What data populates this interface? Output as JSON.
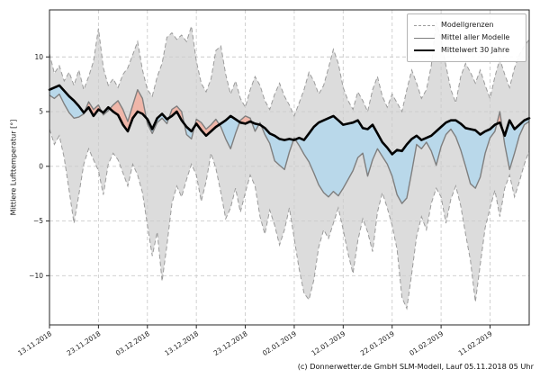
{
  "figure": {
    "caption": "(c) Donnerwetter.de GmbH SLM-Modell, Lauf 05.11.2018 05 Uhr"
  },
  "chart_data": {
    "type": "line",
    "title": "",
    "xlabel": "",
    "ylabel": "Mittlere Lufttemperatur [°]",
    "ylim": [
      -14.5,
      14.3
    ],
    "grid": true,
    "legend_position": "top-right-inside",
    "legend": [
      "Modellgrenzen",
      "Mittel aller Modelle",
      "Mittelwert 30 Jahre"
    ],
    "x_tick_labels": [
      "13.11.2018",
      "23.11.2018",
      "03.12.2018",
      "13.12.2018",
      "23.12.2018",
      "02.01.2019",
      "12.01.2019",
      "22.01.2019",
      "01.02.2019",
      "11.02.2019"
    ],
    "x_tick_days": [
      0,
      10,
      20,
      30,
      40,
      50,
      60,
      70,
      80,
      90
    ],
    "x_range_days": [
      0,
      98
    ],
    "x_unit": "Tage ab 13.11.2018",
    "y_ticks": [
      10,
      5,
      0,
      -5,
      -10
    ],
    "y_tick_labels": [
      "10",
      "5",
      "0",
      "−5",
      "−10"
    ],
    "colors": {
      "band_fill": "#dcdcdc",
      "band_border": "#9b9b9b",
      "above_fill": "#efb6a9",
      "below_fill": "#b9d8ea",
      "model_mean_line": "#7f7f7f",
      "climate_line": "#000000",
      "grid_line": "#cccccc",
      "axis": "#262626"
    },
    "series": [
      {
        "name": "Modellgrenzen (obere Grenze)",
        "role": "upper_bound",
        "style": "dashed",
        "values": [
          10.3,
          8.5,
          9.2,
          7.8,
          8.6,
          7.4,
          8.8,
          7.0,
          8.2,
          9.6,
          12.6,
          9.0,
          7.4,
          8.0,
          7.2,
          8.4,
          9.0,
          10.2,
          11.4,
          8.8,
          7.0,
          6.4,
          8.2,
          9.4,
          11.8,
          12.2,
          11.6,
          12.0,
          11.4,
          12.8,
          9.6,
          7.6,
          6.8,
          8.0,
          10.6,
          11.0,
          8.4,
          6.6,
          7.8,
          6.2,
          5.4,
          7.0,
          8.2,
          7.4,
          6.0,
          5.2,
          6.6,
          7.6,
          6.4,
          5.6,
          4.6,
          5.8,
          7.0,
          8.6,
          7.8,
          6.6,
          7.4,
          9.0,
          10.7,
          9.4,
          7.2,
          6.0,
          5.2,
          6.8,
          6.0,
          5.0,
          7.0,
          8.2,
          6.4,
          5.4,
          6.6,
          5.8,
          5.0,
          7.0,
          8.8,
          7.6,
          6.2,
          7.0,
          9.2,
          13.2,
          11.6,
          9.2,
          7.0,
          5.8,
          8.2,
          9.4,
          8.6,
          7.6,
          8.8,
          7.4,
          6.2,
          8.2,
          9.8,
          8.4,
          7.2,
          9.0,
          10.2,
          11.0,
          11.6
        ]
      },
      {
        "name": "Modellgrenzen (untere Grenze)",
        "role": "lower_bound",
        "style": "dashed",
        "values": [
          3.4,
          2.0,
          2.8,
          0.8,
          -2.2,
          -5.2,
          -2.6,
          0.2,
          1.6,
          0.6,
          -0.4,
          -2.6,
          0.2,
          1.2,
          0.6,
          -0.6,
          -1.8,
          0.2,
          -0.8,
          -2.4,
          -5.4,
          -8.2,
          -6.0,
          -10.5,
          -7.2,
          -3.4,
          -1.8,
          -2.8,
          -1.2,
          0.2,
          -0.8,
          -3.2,
          -1.4,
          1.2,
          -0.2,
          -2.4,
          -4.8,
          -3.8,
          -2.0,
          -4.2,
          -2.4,
          -0.8,
          -1.8,
          -4.6,
          -6.2,
          -4.0,
          -5.4,
          -7.2,
          -5.8,
          -3.8,
          -6.6,
          -9.4,
          -11.6,
          -12.2,
          -10.4,
          -7.4,
          -5.8,
          -6.6,
          -5.2,
          -3.8,
          -5.8,
          -8.0,
          -9.8,
          -6.8,
          -4.8,
          -6.0,
          -7.8,
          -4.2,
          -2.4,
          -3.8,
          -5.4,
          -7.6,
          -12.0,
          -13.0,
          -9.8,
          -6.4,
          -4.6,
          -5.8,
          -3.4,
          -2.0,
          -2.8,
          -5.2,
          -3.0,
          -1.8,
          -3.6,
          -6.2,
          -8.6,
          -12.4,
          -9.0,
          -5.6,
          -3.8,
          -2.2,
          -4.6,
          -2.0,
          -0.8,
          -2.8,
          -1.4,
          0.2,
          1.4
        ]
      },
      {
        "name": "Mittel aller Modelle",
        "role": "model_mean",
        "style": "solid",
        "values": [
          6.5,
          6.2,
          6.6,
          5.7,
          4.9,
          4.4,
          4.5,
          4.8,
          5.9,
          5.2,
          5.6,
          4.7,
          5.1,
          5.6,
          6.0,
          5.2,
          4.1,
          5.6,
          7.0,
          6.2,
          3.9,
          3.0,
          4.0,
          4.4,
          3.9,
          5.2,
          5.5,
          5.0,
          2.9,
          2.5,
          4.3,
          4.0,
          3.4,
          3.8,
          4.3,
          3.6,
          2.5,
          1.6,
          3.0,
          4.2,
          4.6,
          4.4,
          3.2,
          4.0,
          2.9,
          2.1,
          0.5,
          0.1,
          -0.3,
          1.3,
          2.6,
          1.9,
          1.1,
          0.4,
          -0.6,
          -1.7,
          -2.4,
          -2.8,
          -2.3,
          -2.7,
          -2.0,
          -1.2,
          -0.4,
          0.8,
          1.2,
          -0.9,
          0.6,
          1.6,
          0.9,
          0.2,
          -0.9,
          -2.6,
          -3.4,
          -2.9,
          -0.5,
          2.0,
          1.6,
          2.2,
          1.4,
          0.1,
          1.8,
          2.9,
          3.4,
          2.7,
          1.5,
          0.0,
          -1.6,
          -2.0,
          -1.0,
          1.2,
          2.6,
          3.2,
          5.0,
          2.0,
          -0.3,
          1.2,
          2.8,
          3.8,
          4.1
        ]
      },
      {
        "name": "Mittelwert 30 Jahre",
        "role": "climate_mean",
        "style": "solid-bold",
        "values": [
          7.0,
          7.2,
          7.4,
          6.9,
          6.4,
          6.0,
          5.5,
          4.9,
          5.4,
          4.6,
          5.2,
          4.9,
          5.4,
          5.0,
          4.7,
          3.8,
          3.2,
          4.4,
          5.0,
          4.8,
          4.3,
          3.4,
          4.4,
          4.8,
          4.3,
          4.6,
          5.0,
          4.2,
          3.6,
          3.2,
          3.9,
          3.3,
          2.8,
          3.2,
          3.6,
          3.9,
          4.2,
          4.6,
          4.3,
          4.0,
          3.9,
          4.1,
          3.9,
          3.8,
          3.5,
          3.0,
          2.8,
          2.5,
          2.4,
          2.5,
          2.4,
          2.6,
          2.4,
          3.0,
          3.6,
          4.0,
          4.2,
          4.4,
          4.6,
          4.2,
          3.8,
          3.9,
          4.0,
          4.2,
          3.5,
          3.4,
          3.8,
          3.0,
          2.2,
          1.7,
          1.1,
          1.5,
          1.4,
          2.0,
          2.5,
          2.8,
          2.4,
          2.6,
          2.8,
          3.2,
          3.6,
          4.0,
          4.2,
          4.2,
          3.9,
          3.5,
          3.4,
          3.3,
          2.9,
          3.2,
          3.4,
          3.8,
          4.0,
          2.8,
          4.2,
          3.4,
          3.8,
          4.2,
          4.4
        ]
      }
    ]
  }
}
